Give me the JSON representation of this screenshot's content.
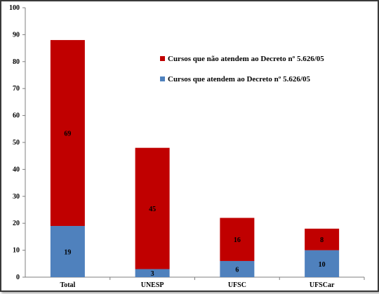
{
  "chart_data": {
    "type": "bar",
    "stacked": true,
    "title": "",
    "xlabel": "",
    "ylabel": "",
    "ylim": [
      0,
      100
    ],
    "yticks": [
      0,
      10,
      20,
      30,
      40,
      50,
      60,
      70,
      80,
      90,
      100
    ],
    "categories": [
      "Total",
      "UNESP",
      "UFSC",
      "UFSCar"
    ],
    "series": [
      {
        "name": "Cursos que atendem ao Decreto nº 5.626/05",
        "color": "#4f81bd",
        "values": [
          19,
          3,
          6,
          10
        ]
      },
      {
        "name": "Cursos que não atendem ao Decreto nº 5.626/05",
        "color": "#c00000",
        "values": [
          69,
          45,
          16,
          8
        ]
      }
    ],
    "legend_order": [
      1,
      0
    ],
    "legend_position": "upper-right",
    "grid": false
  }
}
